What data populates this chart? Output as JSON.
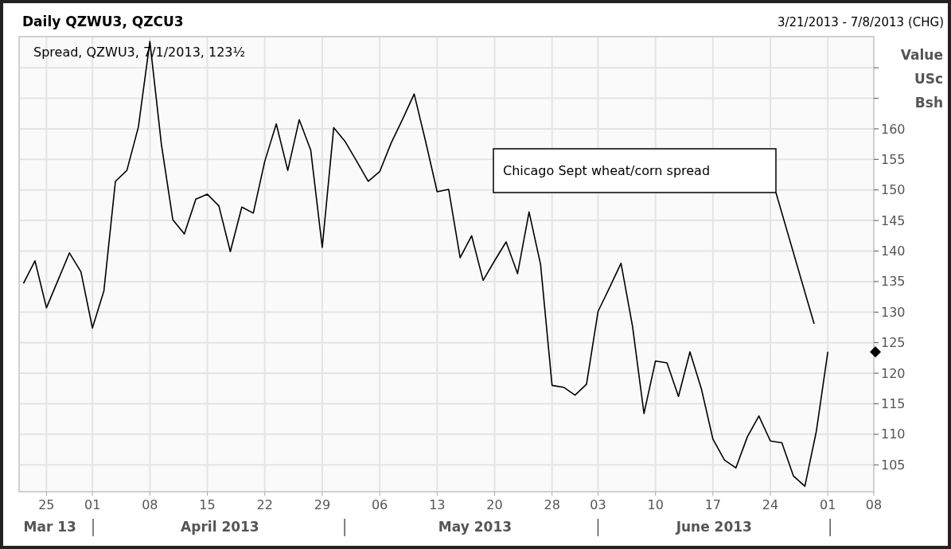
{
  "chart_data": {
    "type": "line",
    "title": "Daily QZWU3, QZCU3",
    "subtitle": "3/21/2013 - 7/8/2013 (CHG)",
    "ylabel": "Value USc Bsh",
    "annotations": [
      "Chicago Sept wheat/corn spread",
      "Mar 13",
      "April 2013",
      "May 2013",
      "June 2013"
    ],
    "categories": [
      null,
      null,
      "25",
      null,
      null,
      null,
      "01",
      null,
      null,
      null,
      null,
      "08",
      null,
      null,
      null,
      null,
      "15",
      null,
      null,
      null,
      null,
      "22",
      null,
      null,
      null,
      null,
      "29",
      null,
      null,
      null,
      null,
      "06",
      null,
      null,
      null,
      null,
      "13",
      null,
      null,
      null,
      null,
      "20",
      null,
      null,
      null,
      null,
      "28",
      null,
      null,
      null,
      "03",
      null,
      null,
      null,
      null,
      "10",
      null,
      null,
      null,
      null,
      "17",
      null,
      null,
      null,
      null,
      "24",
      null,
      null,
      null,
      null,
      "01",
      null,
      null,
      null,
      "08"
    ],
    "series": [
      {
        "name": "Spread, QZWU3, 7/1/2013, 123½",
        "color": "#000000",
        "values": [
          134.7,
          138.4,
          130.7,
          135.2,
          139.7,
          136.6,
          127.4,
          133.5,
          151.4,
          153.2,
          160.3,
          174.3,
          157.5,
          145.1,
          142.8,
          148.5,
          149.3,
          147.4,
          139.9,
          147.2,
          146.2,
          154.7,
          160.8,
          153.2,
          161.5,
          156.5,
          140.6,
          160.2,
          157.9,
          154.7,
          151.4,
          153.0,
          157.7,
          161.6,
          165.7,
          157.9,
          149.7,
          150.1,
          138.9,
          142.5,
          135.2,
          138.4,
          141.5,
          136.3,
          146.4,
          137.8,
          118.0,
          117.7,
          116.4,
          118.2,
          130.1,
          134.0,
          138.0,
          127.7,
          113.4,
          122.0,
          121.7,
          116.2,
          123.5,
          117.4,
          109.2,
          105.8,
          104.5,
          109.6,
          113.0,
          108.9,
          108.6,
          103.2,
          101.5,
          110.5,
          123.5,
          null,
          null,
          null,
          null
        ]
      }
    ],
    "ylim": [
      100.6,
      175.1
    ],
    "yticks": [
      105,
      110,
      115,
      120,
      125,
      130,
      135,
      140,
      145,
      150,
      155,
      160,
      {
        "value": 165,
        "label": null
      },
      {
        "value": 170,
        "label": null
      }
    ],
    "grid": true,
    "legend": "top left",
    "marker": "none",
    "line_style": "solid"
  }
}
